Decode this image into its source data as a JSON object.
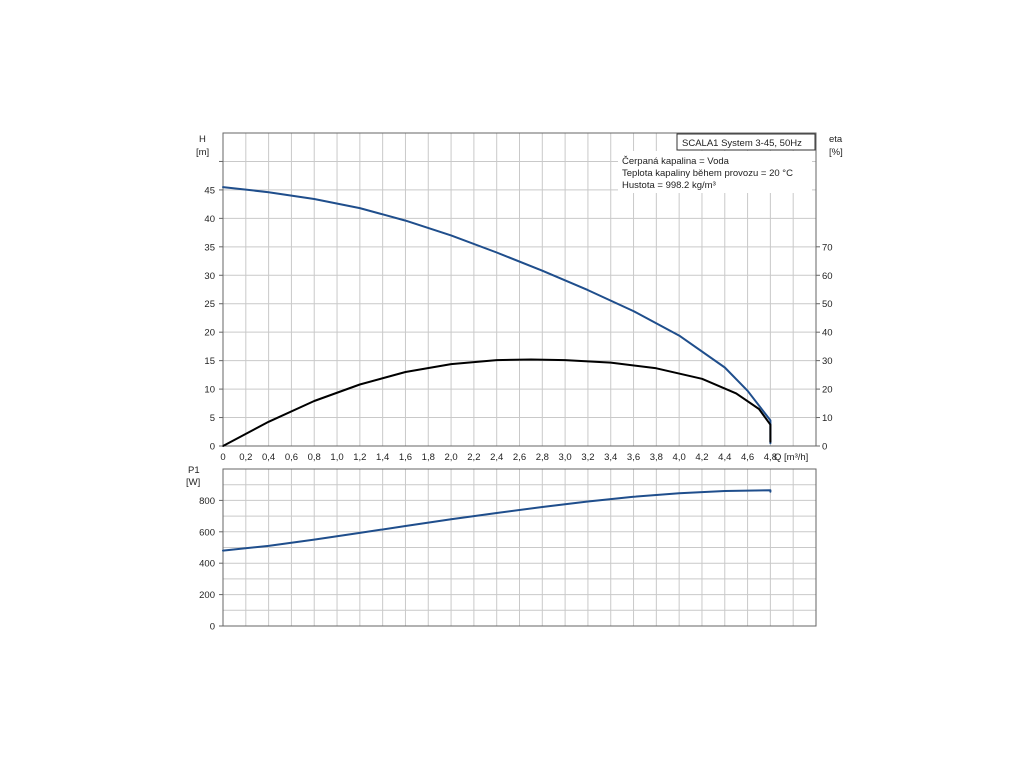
{
  "chart_data": [
    {
      "type": "line",
      "xlabel": "Q [m³/h]",
      "ylabel": "H [m]",
      "y2label": "eta [%]",
      "x_ticks": [
        "0",
        "0,2",
        "0,4",
        "0,6",
        "0,8",
        "1,0",
        "1,2",
        "1,4",
        "1,6",
        "1,8",
        "2,0",
        "2,2",
        "2,4",
        "2,6",
        "2,8",
        "3,0",
        "3,2",
        "3,4",
        "3,6",
        "3,8",
        "4,0",
        "4,2",
        "4,4",
        "4,6",
        "4,8"
      ],
      "xlim": [
        0,
        5.2
      ],
      "ylim": [
        0,
        55
      ],
      "y_ticks": [
        0,
        5,
        10,
        15,
        20,
        25,
        30,
        35,
        40,
        45
      ],
      "y2lim": [
        0,
        110
      ],
      "y2_ticks": [
        0,
        10,
        20,
        30,
        40,
        50,
        60,
        70
      ],
      "series": [
        {
          "axis": "left",
          "color": "#1f4e8c",
          "points": [
            [
              0,
              45.5
            ],
            [
              0.4,
              44.6
            ],
            [
              0.8,
              43.4
            ],
            [
              1.2,
              41.8
            ],
            [
              1.6,
              39.6
            ],
            [
              2.0,
              37.0
            ],
            [
              2.4,
              34.0
            ],
            [
              2.8,
              30.8
            ],
            [
              3.2,
              27.4
            ],
            [
              3.6,
              23.7
            ],
            [
              4.0,
              19.4
            ],
            [
              4.4,
              13.8
            ],
            [
              4.6,
              9.7
            ],
            [
              4.8,
              4.5
            ],
            [
              4.8,
              0.5
            ]
          ]
        },
        {
          "axis": "right",
          "color": "#000000",
          "points": [
            [
              0,
              0
            ],
            [
              0.4,
              8.5
            ],
            [
              0.8,
              15.8
            ],
            [
              1.2,
              21.6
            ],
            [
              1.6,
              26.0
            ],
            [
              2.0,
              28.8
            ],
            [
              2.4,
              30.2
            ],
            [
              2.7,
              30.4
            ],
            [
              3.0,
              30.2
            ],
            [
              3.4,
              29.3
            ],
            [
              3.8,
              27.3
            ],
            [
              4.2,
              23.6
            ],
            [
              4.5,
              18.5
            ],
            [
              4.7,
              13.0
            ],
            [
              4.8,
              7.5
            ],
            [
              4.8,
              1.5
            ]
          ]
        }
      ]
    },
    {
      "type": "line",
      "ylabel": "P1 [W]",
      "xlim": [
        0,
        5.2
      ],
      "ylim": [
        0,
        1000
      ],
      "y_ticks": [
        0,
        200,
        400,
        600,
        800
      ],
      "series": [
        {
          "color": "#1f4e8c",
          "points": [
            [
              0,
              480
            ],
            [
              0.4,
              510
            ],
            [
              0.8,
              550
            ],
            [
              1.2,
              593
            ],
            [
              1.6,
              637
            ],
            [
              2.0,
              680
            ],
            [
              2.4,
              720
            ],
            [
              2.8,
              758
            ],
            [
              3.2,
              793
            ],
            [
              3.6,
              823
            ],
            [
              4.0,
              846
            ],
            [
              4.4,
              860
            ],
            [
              4.8,
              865
            ],
            [
              4.8,
              855
            ]
          ]
        }
      ]
    }
  ],
  "legend_box": {
    "title": "SCALA1 System 3-45, 50Hz",
    "lines": [
      "Čerpaná kapalina = Voda",
      "Teplota kapaliny během provozu = 20 °C",
      "Hustota = 998.2 kg/m³"
    ]
  },
  "labels": {
    "h_axis": "H",
    "h_unit": "[m]",
    "eta_axis": "eta",
    "eta_unit": "[%]",
    "q_axis": "Q [m³/h]",
    "p1_axis": "P1",
    "p1_unit": "[W]"
  }
}
